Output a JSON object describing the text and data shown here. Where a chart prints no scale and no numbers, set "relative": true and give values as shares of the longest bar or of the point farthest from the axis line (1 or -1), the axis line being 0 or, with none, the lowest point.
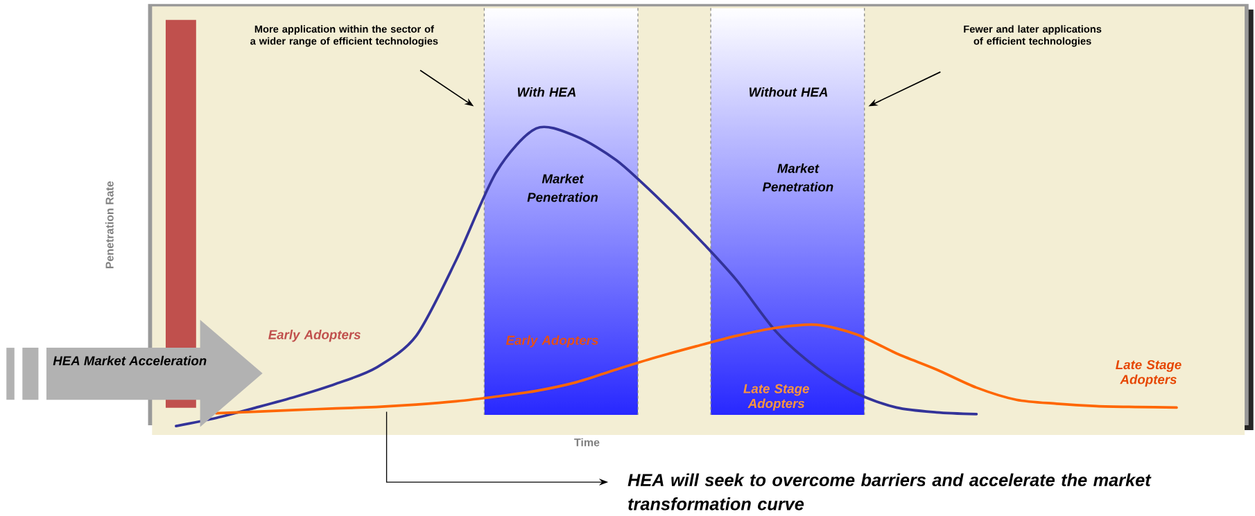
{
  "chart_data": {
    "type": "line",
    "relative": true,
    "xlabel": "Time",
    "ylabel": "Penetration Rate",
    "categories": [
      null,
      null,
      null,
      null,
      null,
      null,
      null,
      null,
      null,
      null,
      null,
      null,
      null,
      null,
      null,
      null,
      null,
      null,
      null,
      null,
      null,
      null,
      null,
      null,
      null,
      null,
      null
    ],
    "series": [
      {
        "color": "#333399",
        "values": [
          0,
          0.027,
          0.062,
          0.099,
          0.142,
          0.196,
          0.303,
          0.558,
          0.853,
          1,
          0.973,
          0.893,
          0.772,
          0.638,
          0.491,
          0.316,
          0.196,
          0.11,
          0.062,
          0.046,
          0.04,
          null,
          null,
          null,
          null,
          null,
          null
        ]
      },
      {
        "color": "#ff6600",
        "values": [
          null,
          0.043,
          0.048,
          0.054,
          0.059,
          0.064,
          0.072,
          0.083,
          0.099,
          0.118,
          0.147,
          0.19,
          0.231,
          0.268,
          0.303,
          0.33,
          0.34,
          0.308,
          0.244,
          0.19,
          0.129,
          0.088,
          0.075,
          0.067,
          0.064,
          0.062,
          null
        ]
      }
    ],
    "annotations": [
      "More application within the sector of a wider range of efficient technologies",
      "Fewer and later applications of efficient technologies",
      "Market Penetration",
      "Market Penetration",
      "Early Adopters",
      "Early Adopters",
      "Late Stage Adopters",
      "Late Stage Adopters",
      "HEA Market Acceleration",
      "HEA will seek to overcome barriers and accelerate the market transformation curve",
      "With HEA",
      "Without HEA"
    ]
  }
}
